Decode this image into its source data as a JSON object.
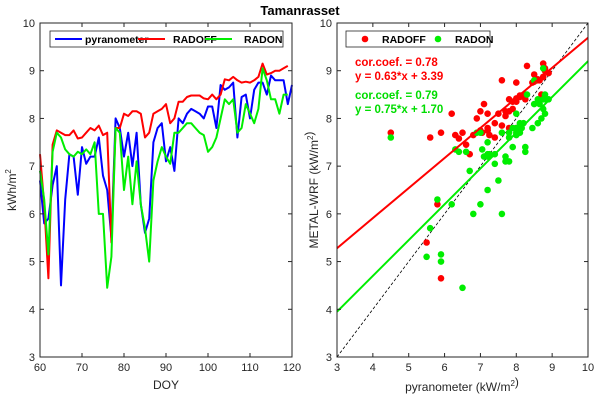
{
  "chart_data": [
    {
      "type": "line",
      "title": "Tamanrasset",
      "xlabel": "DOY",
      "ylabel": "kWh/m²",
      "xlim": [
        60,
        120
      ],
      "ylim": [
        3,
        10
      ],
      "xticks": [
        60,
        70,
        80,
        90,
        100,
        110,
        120
      ],
      "yticks": [
        3,
        4,
        5,
        6,
        7,
        8,
        9,
        10
      ],
      "legend_position": "top",
      "x_start": 60,
      "series": [
        {
          "name": "pyranometer",
          "color": "#0000ff",
          "values": [
            6.7,
            5.8,
            5.9,
            6.6,
            7.0,
            4.5,
            6.3,
            7.25,
            7.2,
            6.4,
            7.4,
            7.05,
            7.2,
            7.2,
            7.6,
            6.8,
            6.5,
            5.5,
            8.0,
            7.8,
            7.2,
            7.7,
            7.0,
            7.7,
            6.2,
            5.6,
            5.9,
            7.5,
            7.8,
            7.9,
            7.1,
            7.4,
            6.9,
            8.0,
            7.9,
            8.1,
            8.2,
            8.15,
            8.1,
            8.0,
            8.25,
            8.25,
            7.8,
            8.7,
            8.6,
            8.65,
            8.75,
            7.6,
            8.45,
            8.5,
            8.0,
            8.6,
            8.75,
            8.75,
            8.5,
            8.9,
            8.8,
            8.8,
            8.8,
            8.3,
            8.7
          ]
        },
        {
          "name": "RADOFF",
          "color": "#ff0000",
          "values": [
            7.25,
            6.2,
            4.65,
            7.45,
            7.75,
            7.7,
            7.65,
            7.65,
            7.75,
            7.58,
            7.6,
            7.7,
            7.8,
            7.75,
            7.85,
            7.65,
            7.7,
            5.4,
            7.8,
            7.8,
            8.1,
            8.05,
            8.15,
            8.15,
            8.1,
            7.6,
            7.7,
            8.1,
            8.15,
            8.2,
            8.3,
            7.9,
            8.0,
            8.35,
            8.35,
            8.45,
            8.48,
            8.48,
            8.48,
            8.42,
            8.4,
            8.5,
            8.4,
            8.5,
            8.82,
            8.8,
            8.87,
            8.8,
            8.75,
            8.77,
            8.75,
            8.8,
            8.87,
            9.15,
            8.92,
            8.95,
            9.0,
            9.0,
            9.05,
            9.1
          ]
        },
        {
          "name": "RADON",
          "color": "#00ee00",
          "values": [
            6.9,
            6.3,
            5.15,
            7.3,
            7.7,
            7.6,
            7.35,
            7.25,
            7.2,
            7.3,
            7.25,
            7.35,
            7.25,
            7.5,
            6.0,
            6.0,
            4.45,
            5.1,
            7.8,
            7.7,
            6.5,
            7.2,
            6.2,
            7.1,
            6.2,
            5.7,
            5.0,
            6.7,
            7.1,
            7.4,
            7.2,
            7.05,
            7.7,
            7.7,
            7.8,
            7.9,
            7.9,
            7.8,
            7.7,
            7.65,
            7.3,
            7.4,
            7.6,
            8.0,
            8.4,
            8.3,
            8.4,
            7.7,
            7.8,
            8.3,
            8.1,
            7.9,
            8.2,
            9.05,
            8.8,
            8.4,
            8.4,
            8.1,
            8.5,
            8.5
          ]
        }
      ]
    },
    {
      "type": "scatter",
      "xlabel": "pyranometer (kW/m²)",
      "ylabel": "METAL-WRF (kW/m²)",
      "xlim": [
        3,
        10
      ],
      "ylim": [
        3,
        10
      ],
      "xticks": [
        3,
        4,
        5,
        6,
        7,
        8,
        9,
        10
      ],
      "yticks": [
        3,
        4,
        5,
        6,
        7,
        8,
        9,
        10
      ],
      "legend_position": "top-left",
      "x_source": "pyranometer",
      "series": [
        {
          "name": "RADOFF",
          "color": "#ff0000",
          "y_source": "RADOFF",
          "corcoef_label": "cor.coef. = 0.78",
          "fit_label": "y = 0.63*x + 3.39",
          "slope": 0.63,
          "intercept": 3.39
        },
        {
          "name": "RADON",
          "color": "#00ee00",
          "y_source": "RADON",
          "corcoef_label": "cor.coef. = 0.79",
          "fit_label": "y = 0.75*x + 1.70",
          "slope": 0.75,
          "intercept": 1.7
        }
      ],
      "reference_line": "1:1"
    }
  ]
}
